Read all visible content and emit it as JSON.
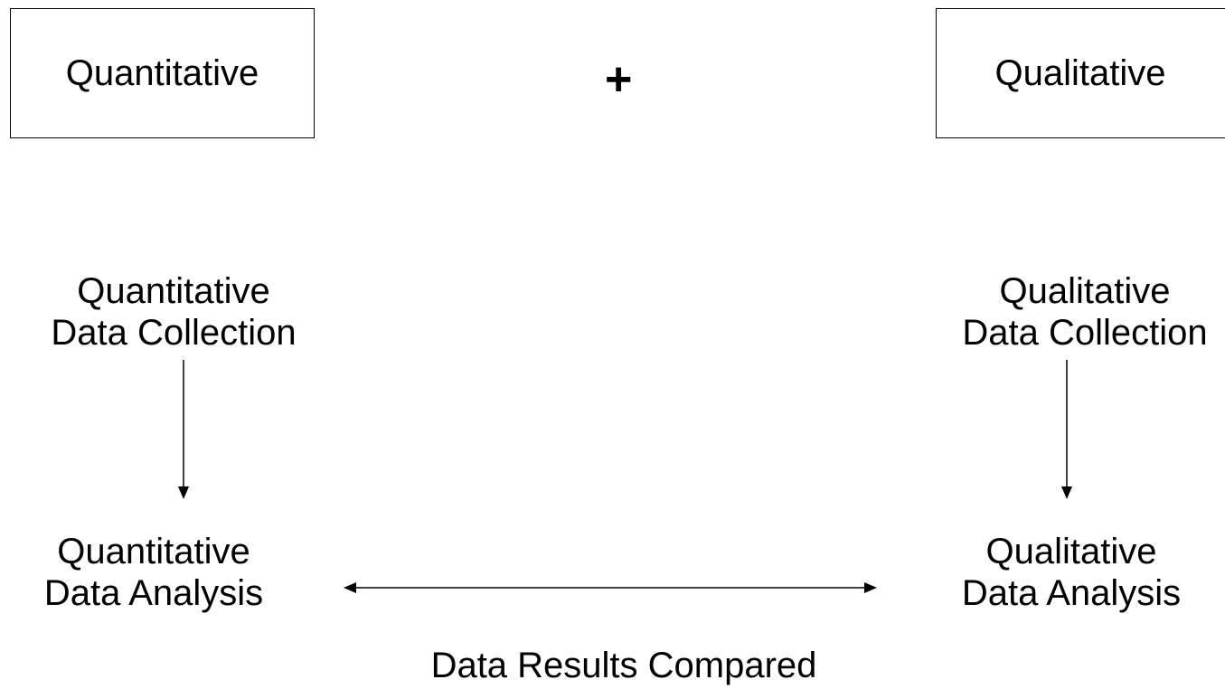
{
  "diagram": {
    "plus_sign": "+",
    "quantitative_box": "Quantitative",
    "qualitative_box": "Qualitative",
    "quantitative_collection": [
      "Quantitative",
      "Data Collection"
    ],
    "quantitative_analysis": [
      "Quantitative",
      "Data Analysis"
    ],
    "qualitative_collection": [
      "Qualitative",
      "Data Collection"
    ],
    "qualitative_analysis": [
      "Qualitative",
      "Data Analysis"
    ],
    "comparison_label": "Data Results Compared"
  }
}
